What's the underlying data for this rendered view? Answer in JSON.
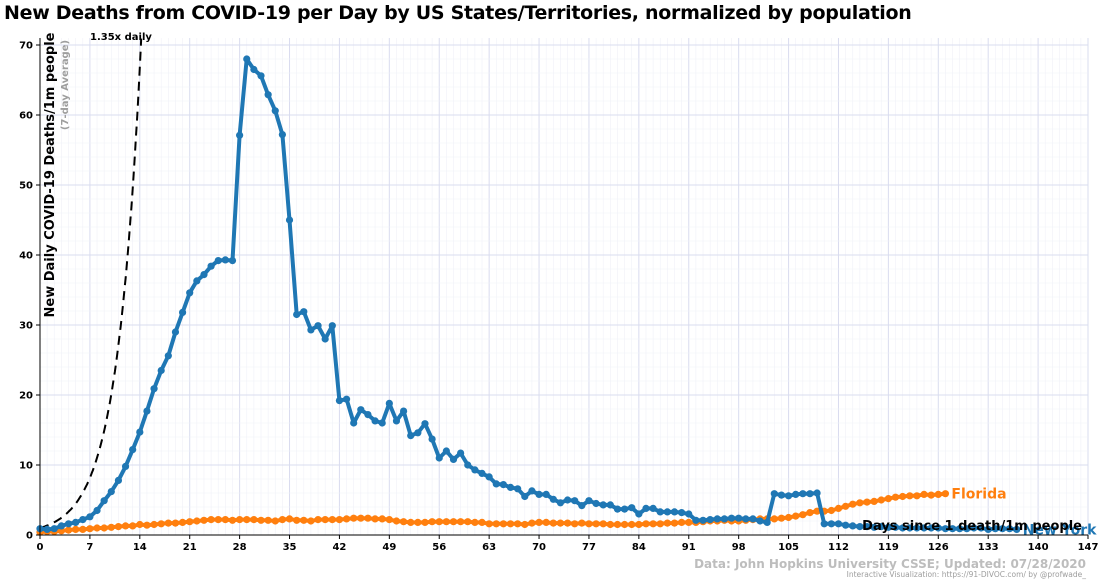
{
  "chart_data": {
    "type": "line",
    "title": "New Deaths from COVID-19 per Day by US States/Territories, normalized by population",
    "ylabel": "New Daily COVID-19 Deaths/1m people",
    "ylabel_sub": "(7-day Average)",
    "xlabel": "Days since 1 death/1m people",
    "xlim": [
      0,
      147
    ],
    "ylim": [
      0,
      71
    ],
    "x_ticks": [
      0,
      7,
      14,
      21,
      28,
      35,
      42,
      49,
      56,
      63,
      70,
      77,
      84,
      91,
      98,
      105,
      112,
      119,
      126,
      133,
      140,
      147
    ],
    "y_ticks": [
      0,
      10,
      20,
      30,
      40,
      50,
      60,
      70
    ],
    "grid": true,
    "reference_line": {
      "label": "1.35x daily",
      "start": 1,
      "growth": 1.35
    },
    "series": [
      {
        "name": "Florida",
        "color": "#ff7f0e",
        "x_start": 0,
        "values": [
          0.4,
          0.5,
          0.5,
          0.6,
          0.7,
          0.8,
          0.8,
          0.9,
          1.0,
          1.0,
          1.1,
          1.2,
          1.3,
          1.3,
          1.5,
          1.4,
          1.5,
          1.6,
          1.7,
          1.7,
          1.8,
          1.9,
          2.0,
          2.1,
          2.2,
          2.2,
          2.2,
          2.1,
          2.2,
          2.2,
          2.2,
          2.1,
          2.1,
          2.0,
          2.2,
          2.3,
          2.1,
          2.1,
          2.0,
          2.2,
          2.2,
          2.2,
          2.2,
          2.3,
          2.4,
          2.4,
          2.4,
          2.3,
          2.3,
          2.2,
          2.0,
          1.9,
          1.8,
          1.8,
          1.8,
          1.9,
          1.9,
          1.9,
          1.9,
          1.9,
          1.9,
          1.8,
          1.8,
          1.6,
          1.6,
          1.6,
          1.6,
          1.6,
          1.5,
          1.7,
          1.8,
          1.8,
          1.7,
          1.7,
          1.7,
          1.6,
          1.7,
          1.6,
          1.6,
          1.6,
          1.5,
          1.5,
          1.5,
          1.5,
          1.5,
          1.6,
          1.6,
          1.6,
          1.7,
          1.7,
          1.8,
          1.8,
          1.8,
          1.9,
          2.0,
          2.0,
          2.1,
          2.0,
          2.0,
          2.1,
          2.2,
          2.3,
          2.3,
          2.3,
          2.4,
          2.5,
          2.7,
          2.9,
          3.2,
          3.4,
          3.4,
          3.5,
          3.8,
          4.1,
          4.4,
          4.6,
          4.7,
          4.8,
          5.0,
          5.2,
          5.4,
          5.5,
          5.6,
          5.6,
          5.8,
          5.7,
          5.8,
          5.9
        ]
      },
      {
        "name": "New York",
        "color": "#1f77b4",
        "x_start": 0,
        "values": [
          0.9,
          0.8,
          0.9,
          1.3,
          1.6,
          1.8,
          2.2,
          2.6,
          3.5,
          4.9,
          6.2,
          7.8,
          9.8,
          12.2,
          14.7,
          17.7,
          20.9,
          23.5,
          25.6,
          29.0,
          31.8,
          34.6,
          36.3,
          37.2,
          38.4,
          39.2,
          39.3,
          39.2,
          57.1,
          68.0,
          66.5,
          65.6,
          62.9,
          60.6,
          57.2,
          45.0,
          31.5,
          31.9,
          29.3,
          29.9,
          28.0,
          29.9,
          19.2,
          19.4,
          16.0,
          17.9,
          17.2,
          16.3,
          16.0,
          18.8,
          16.3,
          17.7,
          14.2,
          14.6,
          15.9,
          13.7,
          11.0,
          12.0,
          10.8,
          11.7,
          10.0,
          9.3,
          8.8,
          8.3,
          7.3,
          7.2,
          6.8,
          6.6,
          5.5,
          6.3,
          5.8,
          5.8,
          5.1,
          4.6,
          5.0,
          4.9,
          4.2,
          4.9,
          4.5,
          4.3,
          4.3,
          3.7,
          3.7,
          3.9,
          3.0,
          3.8,
          3.8,
          3.3,
          3.3,
          3.3,
          3.2,
          3.0,
          2.1,
          2.1,
          2.2,
          2.3,
          2.3,
          2.4,
          2.4,
          2.3,
          2.3,
          2.0,
          1.8,
          5.9,
          5.7,
          5.6,
          5.8,
          5.9,
          5.9,
          6.0,
          1.6,
          1.6,
          1.6,
          1.4,
          1.3,
          1.2,
          1.2,
          1.1,
          1.2,
          1.1,
          1.1,
          1.0,
          1.0,
          1.0,
          1.0,
          1.0,
          1.0,
          0.9,
          0.9,
          0.9,
          0.9,
          1.0,
          1.0,
          0.8,
          0.9,
          0.9,
          0.9,
          0.8
        ]
      }
    ]
  },
  "credits": {
    "data_source": "Data: John Hopkins University CSSE; Updated: 07/28/2020",
    "viz_credit": "Interactive Visualization: https://91-DIVOC.com/ by @profwade_"
  }
}
